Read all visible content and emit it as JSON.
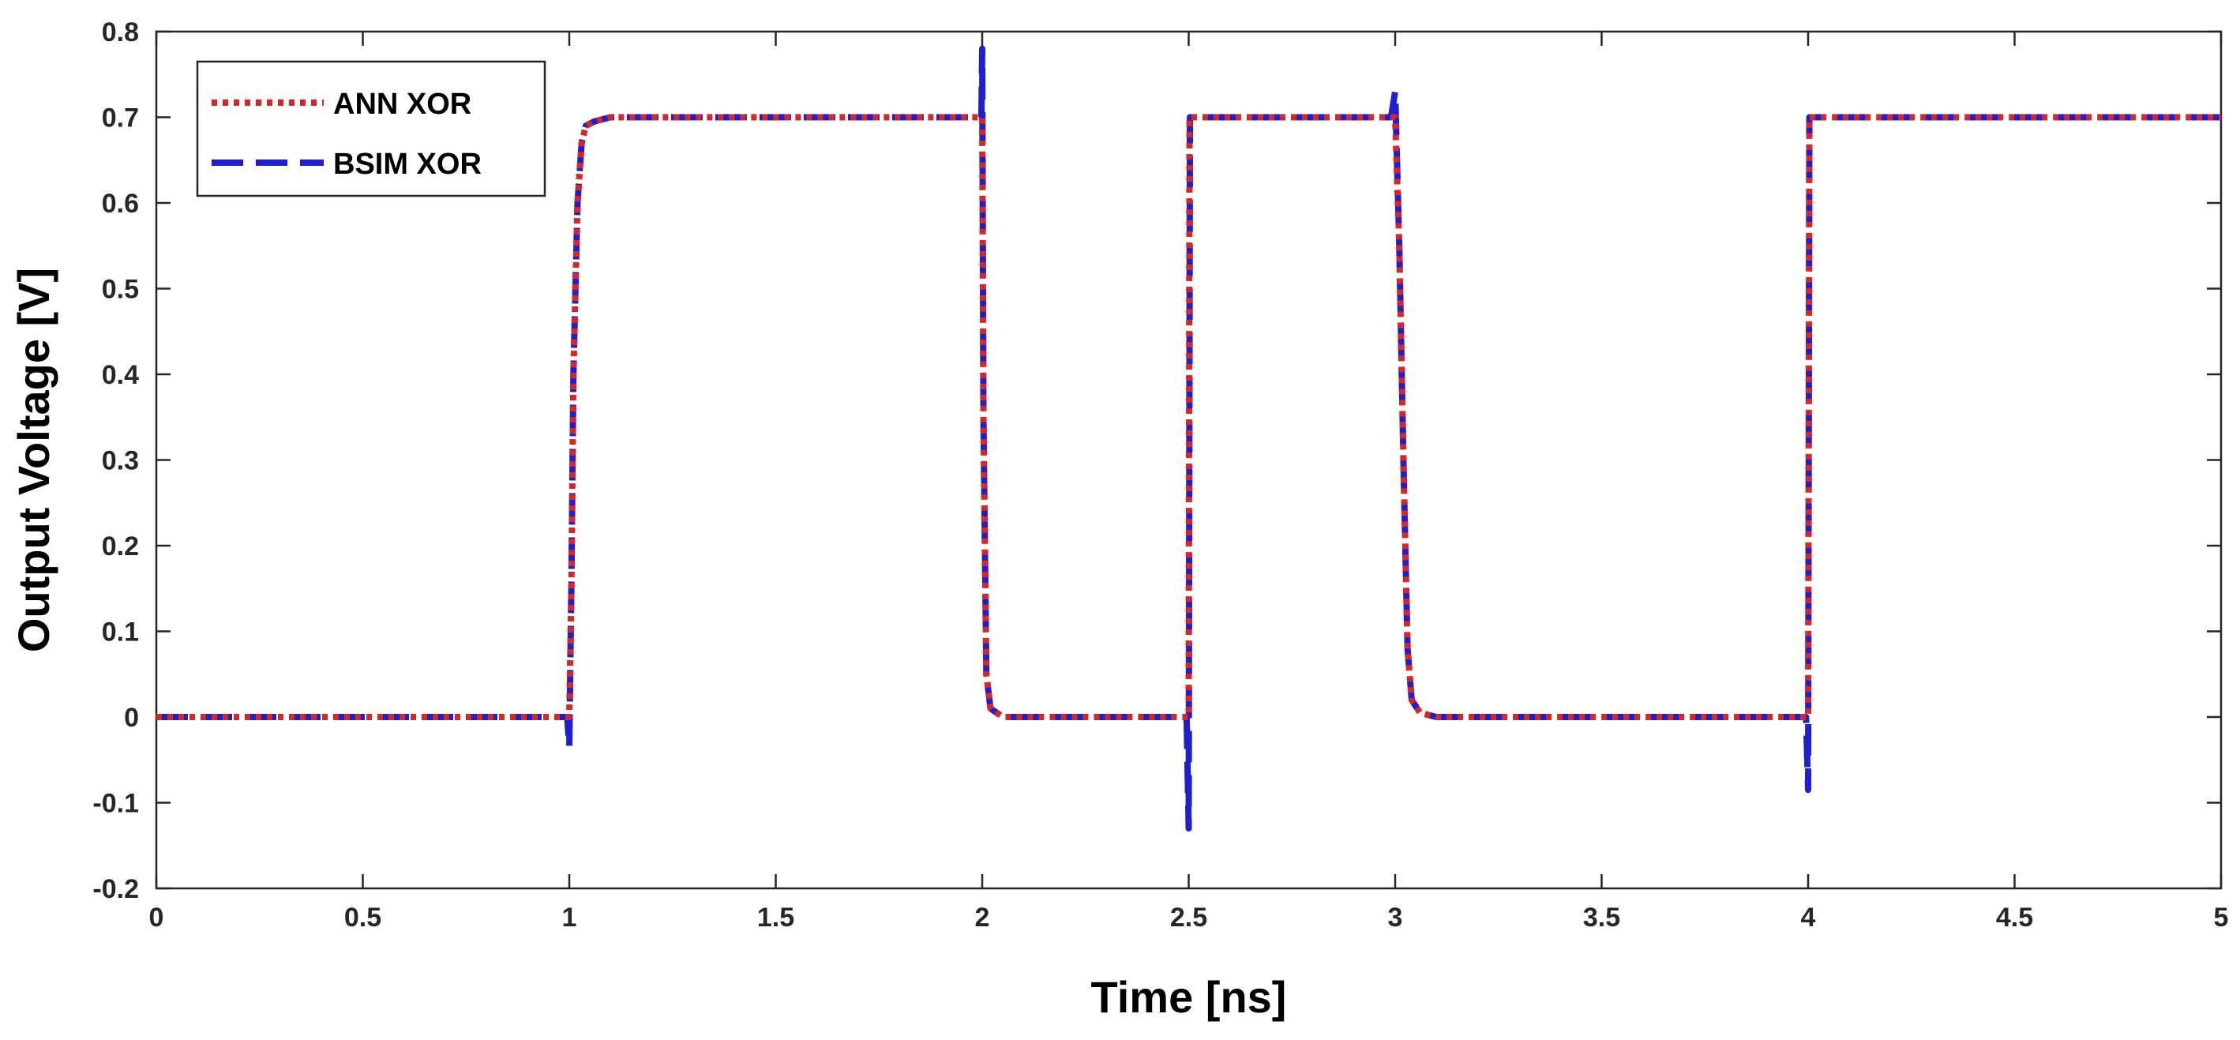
{
  "chart_data": {
    "type": "line",
    "title": "",
    "xlabel": "Time [ns]",
    "ylabel": "Output Voltage [V]",
    "xlim": [
      0,
      5
    ],
    "ylim": [
      -0.2,
      0.8
    ],
    "xticks": [
      0,
      0.5,
      1,
      1.5,
      2,
      2.5,
      3,
      3.5,
      4,
      4.5,
      5
    ],
    "xtick_labels": [
      "0",
      "0.5",
      "1",
      "1.5",
      "2",
      "2.5",
      "3",
      "3.5",
      "4",
      "4.5",
      "5"
    ],
    "yticks": [
      -0.2,
      -0.1,
      0,
      0.1,
      0.2,
      0.3,
      0.4,
      0.5,
      0.6,
      0.7,
      0.8
    ],
    "ytick_labels": [
      "-0.2",
      "-0.1",
      "0",
      "0.1",
      "0.2",
      "0.3",
      "0.4",
      "0.5",
      "0.6",
      "0.7",
      "0.8"
    ],
    "grid": false,
    "legend_position": "top-left",
    "series": [
      {
        "name": "ANN XOR",
        "color": "#d62728",
        "line_style": "dotted",
        "x": [
          0,
          1.0,
          1.005,
          1.01,
          1.02,
          1.03,
          1.04,
          1.06,
          1.1,
          2.0,
          2.003,
          2.01,
          2.02,
          2.05,
          2.5,
          2.502,
          2.51,
          3.0,
          3.01,
          3.02,
          3.03,
          3.04,
          3.06,
          3.1,
          4.0,
          4.003,
          4.01,
          5.0
        ],
        "y": [
          0,
          0,
          0.15,
          0.4,
          0.6,
          0.67,
          0.69,
          0.695,
          0.7,
          0.7,
          0.35,
          0.05,
          0.01,
          0,
          0,
          0.7,
          0.7,
          0.7,
          0.55,
          0.3,
          0.08,
          0.02,
          0.005,
          0,
          0,
          0.7,
          0.7,
          0.7
        ]
      },
      {
        "name": "BSIM XOR",
        "color": "#1f1fcf",
        "line_style": "dashed",
        "x": [
          0,
          0.995,
          1.0,
          1.005,
          1.01,
          1.02,
          1.03,
          1.04,
          1.06,
          1.1,
          1.998,
          2.0,
          2.003,
          2.01,
          2.02,
          2.05,
          2.495,
          2.5,
          2.503,
          2.51,
          2.99,
          3.0,
          3.01,
          3.02,
          3.03,
          3.04,
          3.06,
          3.1,
          3.995,
          4.0,
          4.003,
          4.01,
          5.0
        ],
        "y": [
          0,
          0,
          -0.035,
          0.15,
          0.4,
          0.6,
          0.67,
          0.69,
          0.695,
          0.7,
          0.7,
          0.78,
          0.35,
          0.05,
          0.01,
          0,
          0,
          -0.13,
          0.7,
          0.7,
          0.7,
          0.73,
          0.55,
          0.3,
          0.08,
          0.02,
          0.005,
          0,
          0,
          -0.085,
          0.7,
          0.7,
          0.7
        ]
      }
    ]
  }
}
